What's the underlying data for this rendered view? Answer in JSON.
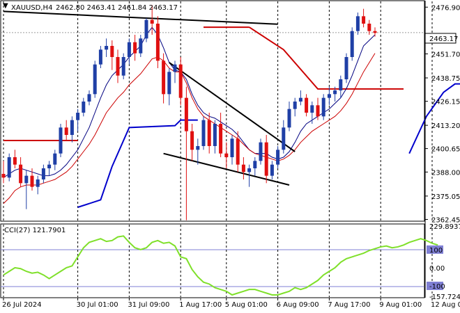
{
  "header": {
    "symbol": "XAUUSD,H4",
    "ohlc": "2462.80 2463.41 2461.84 2463.17"
  },
  "price_axis": {
    "ticks": [
      2476.9,
      2463.17,
      2451.7,
      2438.75,
      2426.15,
      2413.2,
      2400.65,
      2388.0,
      2375.05,
      2362.45
    ],
    "tick_labels": [
      "2476.90",
      "2463.17",
      "2451.70",
      "2438.75",
      "2426.15",
      "2413.20",
      "2400.65",
      "2388.00",
      "2375.05",
      "2362.45"
    ],
    "current_price": "2463.17"
  },
  "time_axis": {
    "labels": [
      "26 Jul 2024",
      "30 Jul 01:00",
      "31 Jul 09:00",
      "1 Aug 17:00",
      "5 Aug 01:00",
      "6 Aug 09:00",
      "7 Aug 17:00",
      "9 Aug 01:00",
      "12 Aug 09:00"
    ],
    "label_bars": [
      0,
      13,
      22,
      31,
      39,
      48,
      57,
      66,
      75
    ]
  },
  "cci": {
    "title": "CCI(27) 121.7901",
    "tick_labels": [
      "229.8937",
      "100",
      "0.00",
      "-100",
      "-157.7242"
    ],
    "ticks": [
      229.9,
      100,
      0,
      -100,
      -157.7
    ],
    "range": [
      -157.7,
      229.9
    ],
    "values": [
      -40,
      -20,
      0,
      -5,
      -20,
      -30,
      -25,
      -40,
      -60,
      -40,
      -20,
      0,
      10,
      60,
      110,
      140,
      150,
      160,
      145,
      150,
      170,
      175,
      140,
      110,
      100,
      110,
      140,
      150,
      135,
      140,
      120,
      60,
      50,
      -10,
      -50,
      -80,
      -90,
      -110,
      -120,
      -130,
      -150,
      -140,
      -130,
      -120,
      -120,
      -130,
      -140,
      -150,
      -150,
      -140,
      -130,
      -110,
      -120,
      -110,
      -90,
      -70,
      -40,
      -20,
      0,
      30,
      50,
      60,
      70,
      80,
      95,
      105,
      115,
      120,
      110,
      115,
      125,
      140,
      150,
      160,
      150,
      135,
      125
    ]
  },
  "chart_data": {
    "type": "candlestick",
    "symbol": "XAUUSD",
    "timeframe": "H4",
    "ylim": [
      2361.5,
      2480.0
    ],
    "candles": [
      [
        2387,
        2394,
        2382,
        2385
      ],
      [
        2385,
        2398,
        2383,
        2396
      ],
      [
        2396,
        2400,
        2390,
        2392
      ],
      [
        2392,
        2396,
        2380,
        2382
      ],
      [
        2382,
        2389,
        2368,
        2386
      ],
      [
        2386,
        2390,
        2378,
        2380
      ],
      [
        2380,
        2386,
        2376,
        2384
      ],
      [
        2384,
        2392,
        2382,
        2390
      ],
      [
        2390,
        2394,
        2386,
        2392
      ],
      [
        2392,
        2400,
        2389,
        2398
      ],
      [
        2398,
        2414,
        2396,
        2412
      ],
      [
        2412,
        2416,
        2405,
        2408
      ],
      [
        2408,
        2418,
        2404,
        2416
      ],
      [
        2416,
        2422,
        2410,
        2420
      ],
      [
        2420,
        2428,
        2418,
        2426
      ],
      [
        2426,
        2432,
        2424,
        2430
      ],
      [
        2430,
        2448,
        2428,
        2446
      ],
      [
        2446,
        2456,
        2444,
        2454
      ],
      [
        2454,
        2460,
        2450,
        2456
      ],
      [
        2456,
        2459,
        2443,
        2450
      ],
      [
        2450,
        2454,
        2436,
        2440
      ],
      [
        2440,
        2452,
        2438,
        2450
      ],
      [
        2450,
        2460,
        2446,
        2458
      ],
      [
        2458,
        2462,
        2448,
        2452
      ],
      [
        2452,
        2462,
        2450,
        2460
      ],
      [
        2460,
        2471,
        2458,
        2470
      ],
      [
        2470,
        2478,
        2462,
        2468
      ],
      [
        2468,
        2472,
        2444,
        2448
      ],
      [
        2448,
        2452,
        2425,
        2430
      ],
      [
        2430,
        2444,
        2424,
        2442
      ],
      [
        2442,
        2448,
        2436,
        2446
      ],
      [
        2446,
        2450,
        2424,
        2428
      ],
      [
        2428,
        2434,
        2362,
        2410
      ],
      [
        2410,
        2414,
        2394,
        2400
      ],
      [
        2400,
        2406,
        2392,
        2402
      ],
      [
        2402,
        2418,
        2400,
        2416
      ],
      [
        2416,
        2420,
        2398,
        2402
      ],
      [
        2402,
        2416,
        2398,
        2414
      ],
      [
        2414,
        2420,
        2396,
        2398
      ],
      [
        2398,
        2404,
        2390,
        2396
      ],
      [
        2396,
        2408,
        2392,
        2406
      ],
      [
        2406,
        2410,
        2388,
        2392
      ],
      [
        2392,
        2396,
        2384,
        2388
      ],
      [
        2388,
        2392,
        2380,
        2390
      ],
      [
        2390,
        2396,
        2386,
        2394
      ],
      [
        2394,
        2406,
        2392,
        2404
      ],
      [
        2404,
        2408,
        2382,
        2386
      ],
      [
        2386,
        2394,
        2384,
        2392
      ],
      [
        2392,
        2402,
        2390,
        2400
      ],
      [
        2400,
        2416,
        2398,
        2412
      ],
      [
        2412,
        2426,
        2410,
        2422
      ],
      [
        2422,
        2428,
        2418,
        2426
      ],
      [
        2426,
        2432,
        2424,
        2428
      ],
      [
        2428,
        2430,
        2418,
        2420
      ],
      [
        2420,
        2426,
        2414,
        2424
      ],
      [
        2424,
        2428,
        2416,
        2418
      ],
      [
        2418,
        2430,
        2416,
        2428
      ],
      [
        2428,
        2434,
        2424,
        2430
      ],
      [
        2430,
        2434,
        2426,
        2432
      ],
      [
        2432,
        2440,
        2428,
        2438
      ],
      [
        2438,
        2452,
        2436,
        2450
      ],
      [
        2450,
        2466,
        2448,
        2464
      ],
      [
        2464,
        2474,
        2462,
        2472
      ],
      [
        2472,
        2476,
        2466,
        2468
      ],
      [
        2468,
        2470,
        2462,
        2464
      ],
      [
        2464,
        2466,
        2461,
        2463
      ]
    ],
    "label_bars": [
      0,
      13,
      22,
      31,
      39,
      48,
      57,
      66,
      75
    ],
    "series": [
      {
        "name": "",
        "color": "#000080",
        "values": [
          2385,
          2387,
          2389,
          2390,
          2389,
          2388,
          2387,
          2386,
          2386,
          2387,
          2389,
          2392,
          2396,
          2400,
          2406,
          2412,
          2420,
          2428,
          2435,
          2440,
          2443,
          2446,
          2450,
          2453,
          2456,
          2462,
          2466,
          2462,
          2455,
          2447,
          2443,
          2442,
          2438,
          2430,
          2424,
          2420,
          2418,
          2417,
          2415,
          2413,
          2411,
          2408,
          2404,
          2400,
          2398,
          2398,
          2398,
          2396,
          2395,
          2396,
          2399,
          2404,
          2410,
          2414,
          2416,
          2418,
          2420,
          2422,
          2425,
          2428,
          2433,
          2440,
          2448,
          2456,
          2459,
          2462
        ]
      },
      {
        "name": "",
        "color": "#cc0000",
        "values": [
          2371,
          2374,
          2378,
          2380,
          2381,
          2381,
          2381,
          2382,
          2383,
          2384,
          2386,
          2388,
          2391,
          2395,
          2399,
          2403,
          2408,
          2414,
          2420,
          2424,
          2428,
          2431,
          2435,
          2438,
          2441,
          2445,
          2449,
          2450,
          2448,
          2444,
          2442,
          2442,
          2436,
          2428,
          2422,
          2418,
          2416,
          2414,
          2412,
          2410,
          2408,
          2406,
          2403,
          2400,
          2398,
          2397,
          2396,
          2395,
          2394,
          2395,
          2397,
          2400,
          2404,
          2407,
          2410,
          2412,
          2414,
          2416,
          2418,
          2421,
          2425,
          2430,
          2436,
          2442,
          2447,
          2452
        ]
      }
    ],
    "trendlines": [
      {
        "from": [
          0,
          2474.6
        ],
        "to": [
          48,
          2467.7
        ],
        "color": "#000000"
      },
      {
        "from": [
          29,
          2447
        ],
        "to": [
          51,
          2399
        ],
        "color": "#000000"
      },
      {
        "from": [
          28,
          2398
        ],
        "to": [
          50,
          2381
        ],
        "color": "#000000"
      }
    ],
    "levels": [
      {
        "from": 0,
        "to": 13,
        "value": 2405,
        "color": "#cc0000"
      },
      {
        "from": 35,
        "to": 43,
        "value": 2466.1,
        "color": "#cc0000"
      },
      {
        "from": 60,
        "to": 70,
        "value": 2432.8,
        "color": "#cc0000"
      }
    ],
    "level_lines": [
      {
        "points": [
          [
            43,
            2466.1
          ],
          [
            49,
            2454
          ],
          [
            55,
            2432.8
          ],
          [
            60,
            2432.8
          ]
        ],
        "color": "#cc0000"
      },
      {
        "points": [
          [
            13,
            2369
          ],
          [
            17,
            2373
          ],
          [
            19,
            2391
          ],
          [
            22,
            2412
          ],
          [
            30,
            2413
          ],
          [
            31,
            2416
          ],
          [
            34,
            2416
          ]
        ],
        "color": "#0000cc"
      },
      {
        "points": [
          [
            71,
            2398
          ],
          [
            74,
            2418
          ],
          [
            77,
            2431
          ],
          [
            79,
            2435.5
          ],
          [
            82,
            2435.5
          ]
        ],
        "color": "#0000cc"
      }
    ]
  }
}
